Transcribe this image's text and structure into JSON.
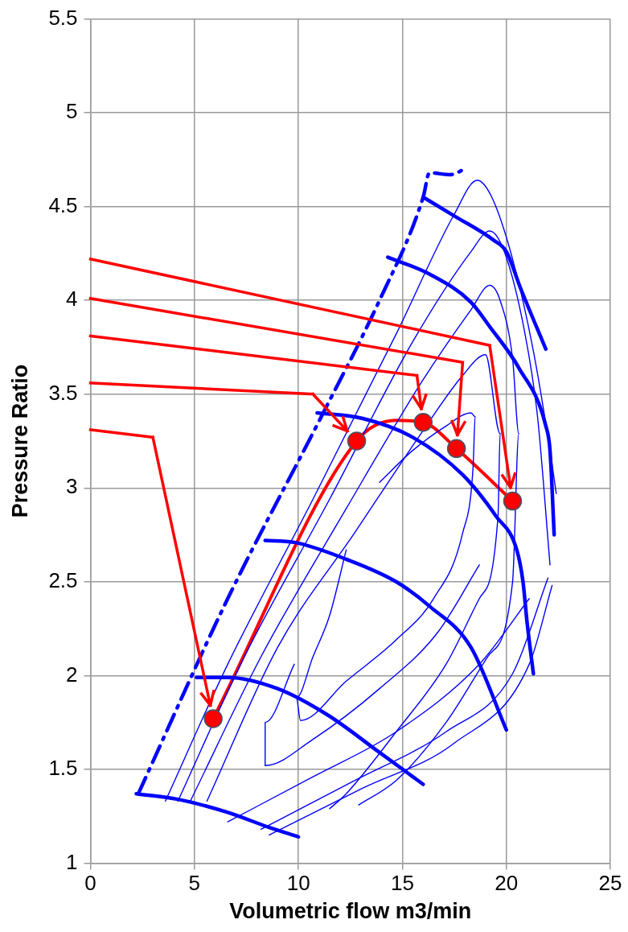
{
  "chart_data": {
    "type": "line",
    "xlabel": "Volumetric flow m3/min",
    "ylabel": "Pressure Ratio",
    "xlim": [
      0,
      25
    ],
    "ylim": [
      1,
      5.5
    ],
    "xticks": [
      0,
      5,
      10,
      15,
      20,
      25
    ],
    "yticks": [
      1,
      1.5,
      2,
      2.5,
      3,
      3.5,
      4,
      4.5,
      5,
      5.5
    ],
    "grid": true,
    "legend": false,
    "marker": "none",
    "line_style": "solid",
    "series": [
      {
        "color": "#0000ff",
        "x": [
          3.6,
          6.6,
          10.7,
          14.7,
          17.5,
          18.6,
          19.3,
          20.3,
          21.3,
          22.1,
          22.4
        ],
        "values": [
          1.33,
          2.06,
          2.94,
          3.82,
          4.46,
          4.64,
          4.55,
          4.22,
          3.73,
          3.2,
          2.97
        ]
      },
      {
        "color": "#0000ff",
        "x": [
          4.2,
          7.4,
          11.5,
          15.5,
          18.3,
          19.2,
          19.9,
          20.9,
          21.5,
          22.1
        ],
        "values": [
          1.33,
          2.1,
          2.94,
          3.78,
          4.26,
          4.37,
          4.26,
          3.82,
          3.38,
          2.59
        ]
      },
      {
        "color": "#0000ff",
        "x": [
          4.8,
          8.2,
          12.3,
          15.9,
          18.3,
          19.2,
          19.7,
          20.3,
          20.6,
          20.3,
          19.1,
          17.1,
          14.7,
          12.9
        ],
        "values": [
          1.33,
          2.1,
          2.89,
          3.56,
          3.95,
          4.08,
          4.0,
          3.69,
          3.29,
          2.5,
          2.1,
          1.75,
          1.44,
          1.31
        ]
      },
      {
        "color": "#0000ff",
        "x": [
          5.6,
          9.0,
          12.7,
          15.9,
          17.9,
          19.0,
          19.7,
          19.6,
          18.7,
          17.1,
          14.7,
          12.3,
          11.5
        ],
        "values": [
          1.33,
          2.15,
          2.76,
          3.29,
          3.6,
          3.71,
          3.29,
          2.85,
          2.41,
          2.06,
          1.7,
          1.37,
          1.29
        ]
      },
      {
        "color": "#0000ff",
        "x": [
          12.3,
          11.5,
          10.7,
          9.9,
          10.1,
          12.3,
          14.7,
          16.5,
          17.9,
          18.4,
          18.5,
          18.3,
          17.1,
          15.5,
          13.9
        ],
        "values": [
          2.67,
          2.32,
          2.1,
          1.88,
          1.76,
          1.97,
          2.19,
          2.41,
          2.76,
          3.11,
          3.38,
          3.4,
          3.33,
          3.2,
          3.03
        ]
      },
      {
        "color": "#0000ff",
        "x": [
          9.8,
          8.4,
          8.4,
          10.7,
          13.9,
          16.7,
          18.7
        ],
        "values": [
          2.06,
          1.75,
          1.52,
          1.66,
          1.93,
          2.23,
          2.59
        ]
      },
      {
        "color": "#0000ff",
        "x": [
          6.6,
          10.7,
          14.7,
          18.7,
          21.1
        ],
        "values": [
          1.22,
          1.46,
          1.7,
          2.06,
          2.41
        ]
      },
      {
        "color": "#0000ff",
        "x": [
          8.2,
          12.7,
          17.1,
          20.3,
          22.0
        ],
        "values": [
          1.18,
          1.44,
          1.7,
          2.01,
          2.52
        ]
      },
      {
        "color": "#0000ff",
        "x": [
          8.6,
          13.1,
          17.5,
          21.1,
          22.2
        ],
        "values": [
          1.15,
          1.4,
          1.64,
          2.06,
          2.48
        ]
      },
      {
        "color": "#0000ff",
        "x": [
          2.2,
          4.2,
          6.6,
          8.6,
          10.0
        ],
        "values": [
          1.37,
          1.34,
          1.27,
          1.19,
          1.14
        ]
      },
      {
        "color": "#0000ff",
        "x": [
          5.1,
          6.6,
          9.0,
          11.4,
          13.9,
          16.0
        ],
        "values": [
          1.99,
          1.99,
          1.93,
          1.79,
          1.59,
          1.42
        ]
      },
      {
        "color": "#0000ff",
        "x": [
          8.4,
          9.8,
          12.3,
          14.7,
          16.3,
          18.3,
          20.0
        ],
        "values": [
          2.72,
          2.71,
          2.62,
          2.5,
          2.37,
          2.15,
          1.71
        ]
      },
      {
        "color": "#0000ff",
        "x": [
          10.9,
          13.1,
          15.5,
          17.9,
          19.5,
          20.5,
          20.8,
          21.0,
          21.3
        ],
        "values": [
          3.4,
          3.37,
          3.27,
          3.07,
          2.85,
          2.67,
          2.5,
          2.28,
          2.01
        ]
      },
      {
        "color": "#0000ff",
        "x": [
          14.3,
          16.3,
          18.3,
          19.2,
          20.6,
          21.9,
          22.1,
          22.3
        ],
        "values": [
          4.23,
          4.14,
          3.99,
          3.86,
          3.64,
          3.33,
          3.2,
          2.75
        ]
      },
      {
        "color": "#0000ff",
        "x": [
          16.0,
          17.5,
          19.4,
          20.0,
          20.7,
          21.9
        ],
        "values": [
          4.55,
          4.45,
          4.32,
          4.26,
          4.06,
          3.74
        ]
      },
      {
        "color": "#0000ff",
        "line_style": "dashed",
        "x": [
          2.3,
          6.6,
          11.1,
          13.9,
          16.0,
          16.3,
          17.3,
          18.0
        ],
        "values": [
          1.37,
          2.41,
          3.38,
          4.0,
          4.55,
          4.68,
          4.67,
          4.7
        ]
      },
      {
        "color": "#ff0000",
        "x": [
          5.9,
          12.8,
          14.7,
          16.0,
          17.6,
          20.3
        ],
        "values": [
          1.77,
          3.25,
          3.36,
          3.35,
          3.21,
          2.93
        ]
      },
      {
        "type": "scatter",
        "color": "#ff0000",
        "marker": "circle",
        "x": [
          5.9,
          12.8,
          16.0,
          17.6,
          20.3
        ],
        "values": [
          1.77,
          3.25,
          3.35,
          3.21,
          2.93
        ]
      }
    ]
  }
}
